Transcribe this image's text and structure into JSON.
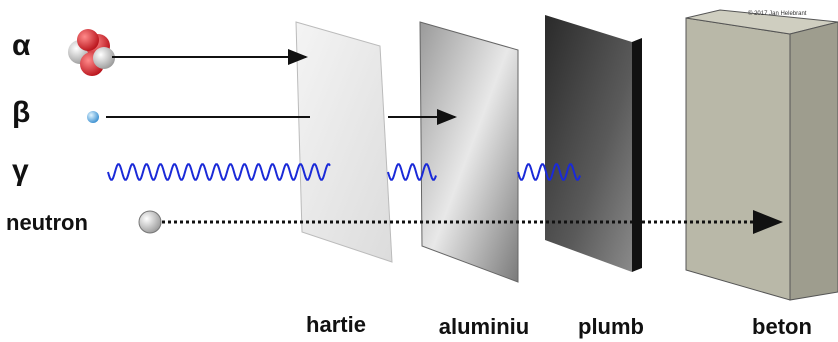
{
  "labels": {
    "alpha": "α",
    "beta": "β",
    "gamma": "γ",
    "neutron": "neutron"
  },
  "materials": [
    "hartie",
    "aluminiu",
    "plumb",
    "beton"
  ],
  "copyright": "© 2017 Jan Helebrant"
}
